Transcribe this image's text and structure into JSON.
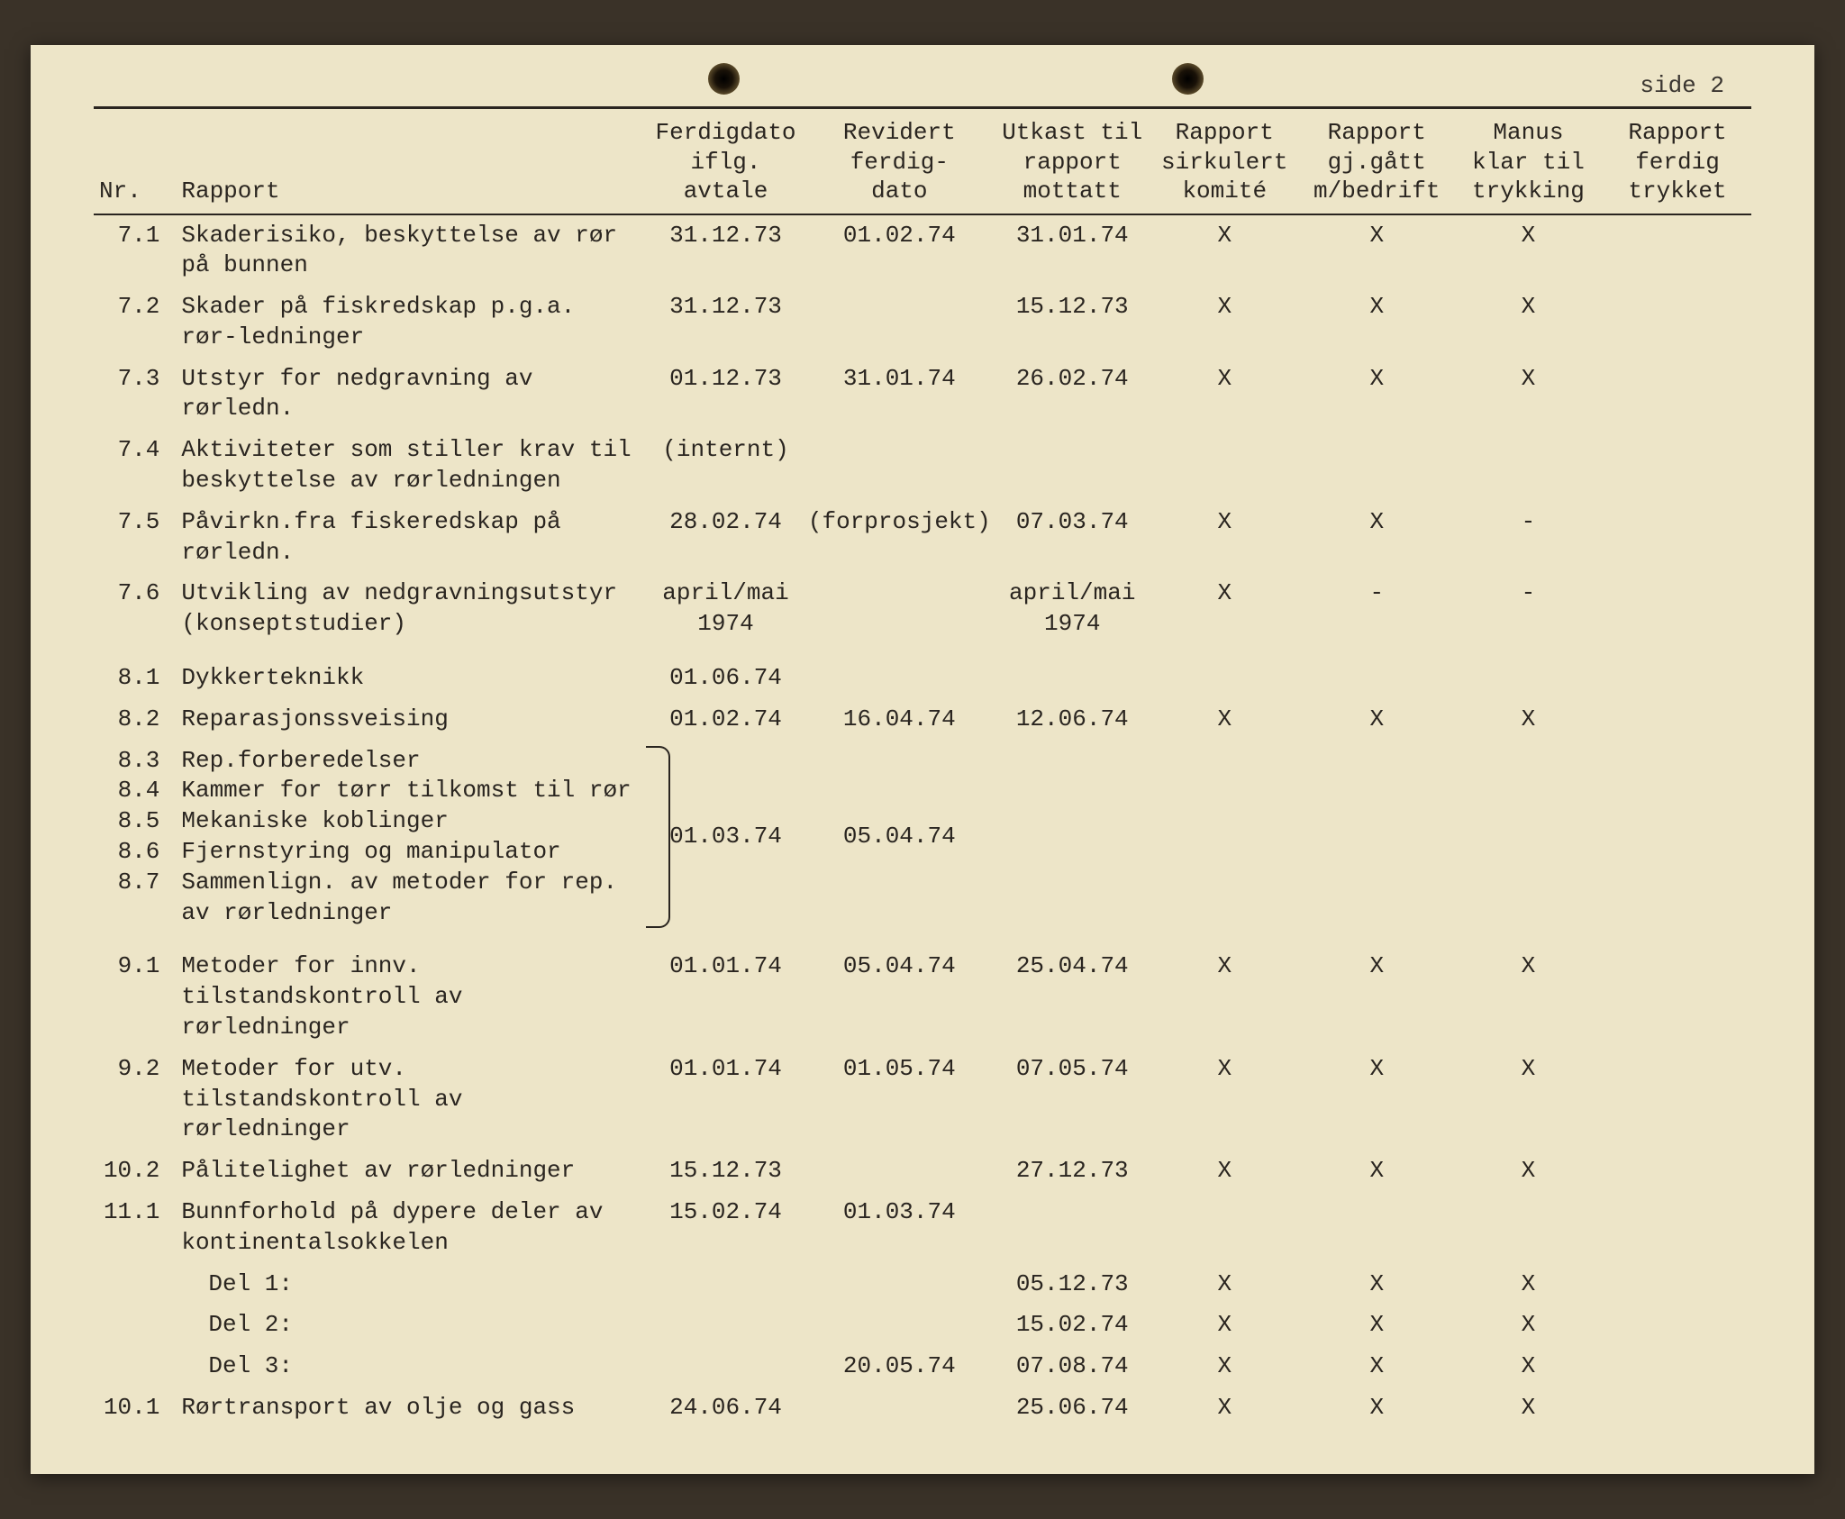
{
  "page_label": "side 2",
  "colors": {
    "paper": "#ede5c8",
    "ink": "#2a2520",
    "background": "#3a3228"
  },
  "font": {
    "family": "Courier New",
    "size_pt": 26
  },
  "headers": {
    "nr": "Nr.",
    "rapport": "Rapport",
    "col3_l1": "Ferdigdato",
    "col3_l2": "iflg.",
    "col3_l3": "avtale",
    "col4_l1": "Revidert",
    "col4_l2": "ferdig-",
    "col4_l3": "dato",
    "col5_l1": "Utkast til",
    "col5_l2": "rapport",
    "col5_l3": "mottatt",
    "col6_l1": "Rapport",
    "col6_l2": "sirkulert",
    "col6_l3": "komité",
    "col7_l1": "Rapport",
    "col7_l2": "gj.gått",
    "col7_l3": "m/bedrift",
    "col8_l1": "Manus",
    "col8_l2": "klar til",
    "col8_l3": "trykking",
    "col9_l1": "Rapport",
    "col9_l2": "ferdig",
    "col9_l3": "trykket"
  },
  "rows": [
    {
      "nr": "7.1",
      "desc": "Skaderisiko, beskyttelse av rør på bunnen",
      "c3": "31.12.73",
      "c4": "01.02.74",
      "c5": "31.01.74",
      "c6": "X",
      "c7": "X",
      "c8": "X",
      "c9": ""
    },
    {
      "nr": "7.2",
      "desc": "Skader på fiskredskap p.g.a. rør-ledninger",
      "c3": "31.12.73",
      "c4": "",
      "c5": "15.12.73",
      "c6": "X",
      "c7": "X",
      "c8": "X",
      "c9": ""
    },
    {
      "nr": "7.3",
      "desc": "Utstyr for nedgravning av rørledn.",
      "c3": "01.12.73",
      "c4": "31.01.74",
      "c5": "26.02.74",
      "c6": "X",
      "c7": "X",
      "c8": "X",
      "c9": ""
    },
    {
      "nr": "7.4",
      "desc": "Aktiviteter som stiller krav til beskyttelse av rørledningen",
      "c3": "(internt)",
      "c4": "",
      "c5": "",
      "c6": "",
      "c7": "",
      "c8": "",
      "c9": ""
    },
    {
      "nr": "7.5",
      "desc": "Påvirkn.fra fiskeredskap på rørledn.",
      "c3": "28.02.74",
      "c4": "(forprosjekt)",
      "c5": "07.03.74",
      "c6": "X",
      "c7": "X",
      "c8": "-",
      "c9": ""
    },
    {
      "nr": "7.6",
      "desc": "Utvikling av nedgravningsutstyr (konseptstudier)",
      "c3": "april/mai 1974",
      "c4": "",
      "c5": "april/mai 1974",
      "c6": "X",
      "c7": "-",
      "c8": "-",
      "c9": ""
    },
    {
      "spacer": true
    },
    {
      "nr": "8.1",
      "desc": "Dykkerteknikk",
      "c3": "01.06.74",
      "c4": "",
      "c5": "",
      "c6": "",
      "c7": "",
      "c8": "",
      "c9": ""
    },
    {
      "nr": "8.2",
      "desc": "Reparasjonssveising",
      "c3": "01.02.74",
      "c4": "16.04.74",
      "c5": "12.06.74",
      "c6": "X",
      "c7": "X",
      "c8": "X",
      "c9": ""
    },
    {
      "group": true,
      "lines": [
        {
          "nr": "8.3",
          "desc": "Rep.forberedelser"
        },
        {
          "nr": "8.4",
          "desc": "Kammer for tørr tilkomst til rør"
        },
        {
          "nr": "8.5",
          "desc": "Mekaniske koblinger"
        },
        {
          "nr": "8.6",
          "desc": "Fjernstyring og manipulator"
        },
        {
          "nr": "8.7",
          "desc": "Sammenlign. av metoder for rep. av rørledninger"
        }
      ],
      "c3": "01.03.74",
      "c4": "05.04.74",
      "c5": "",
      "c6": "",
      "c7": "",
      "c8": "",
      "c9": ""
    },
    {
      "spacer": true
    },
    {
      "nr": "9.1",
      "desc": "Metoder for innv. tilstandskontroll av rørledninger",
      "c3": "01.01.74",
      "c4": "05.04.74",
      "c5": "25.04.74",
      "c6": "X",
      "c7": "X",
      "c8": "X",
      "c9": ""
    },
    {
      "nr": "9.2",
      "desc": "Metoder for utv. tilstandskontroll av rørledninger",
      "c3": "01.01.74",
      "c4": "01.05.74",
      "c5": "07.05.74",
      "c6": "X",
      "c7": "X",
      "c8": "X",
      "c9": ""
    },
    {
      "nr": "10.2",
      "desc": "Pålitelighet av rørledninger",
      "c3": "15.12.73",
      "c4": "",
      "c5": "27.12.73",
      "c6": "X",
      "c7": "X",
      "c8": "X",
      "c9": ""
    },
    {
      "nr": "11.1",
      "desc": "Bunnforhold på dypere deler av kontinentalsokkelen",
      "c3": "15.02.74",
      "c4": "01.03.74",
      "c5": "",
      "c6": "",
      "c7": "",
      "c8": "",
      "c9": ""
    },
    {
      "nr": "",
      "desc_indent": "Del 1:",
      "c3": "",
      "c4": "",
      "c5": "05.12.73",
      "c6": "X",
      "c7": "X",
      "c8": "X",
      "c9": ""
    },
    {
      "nr": "",
      "desc_indent": "Del 2:",
      "c3": "",
      "c4": "",
      "c5": "15.02.74",
      "c6": "X",
      "c7": "X",
      "c8": "X",
      "c9": ""
    },
    {
      "nr": "",
      "desc_indent": "Del 3:",
      "c3": "",
      "c4": "20.05.74",
      "c5": "07.08.74",
      "c6": "X",
      "c7": "X",
      "c8": "X",
      "c9": ""
    },
    {
      "nr": "10.1",
      "desc": "Rørtransport av olje og gass",
      "c3": "24.06.74",
      "c4": "",
      "c5": "25.06.74",
      "c6": "X",
      "c7": "X",
      "c8": "X",
      "c9": ""
    }
  ]
}
